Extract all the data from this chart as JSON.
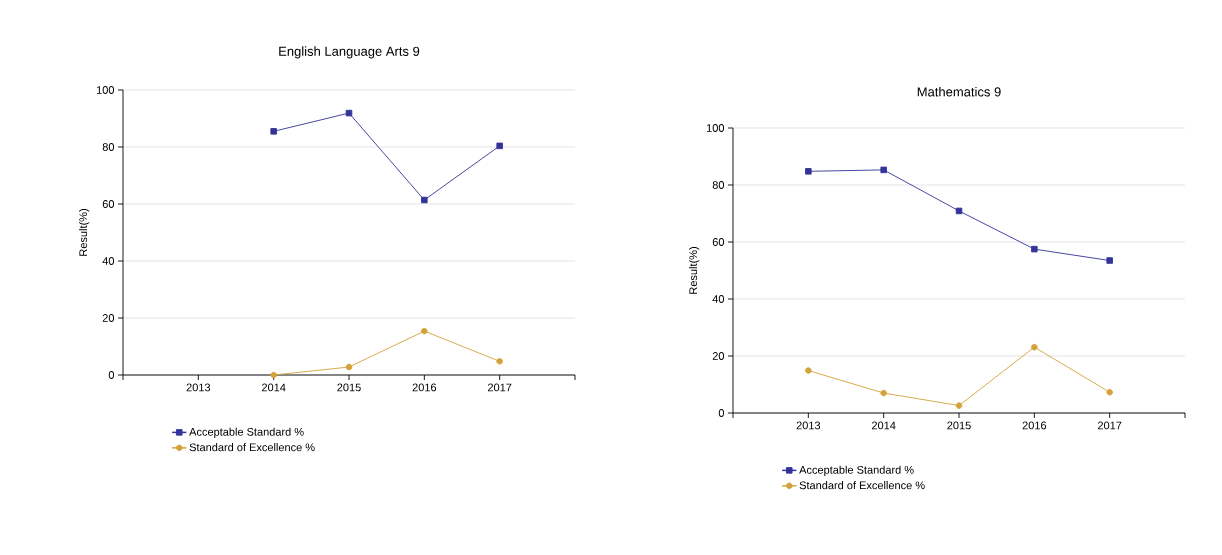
{
  "chart_data": [
    {
      "type": "line",
      "title": "English Language Arts 9",
      "ylabel": "Result(%)",
      "categories": [
        "2013",
        "2014",
        "2015",
        "2016",
        "2017"
      ],
      "series": [
        {
          "name": "Acceptable Standard %",
          "color": "#333399",
          "marker": "square",
          "values": [
            null,
            85.5,
            91.9,
            61.4,
            80.4
          ]
        },
        {
          "name": "Standard of Excellence %",
          "color": "#d4a23a",
          "marker": "circle",
          "values": [
            null,
            0,
            2.8,
            15.4,
            4.8
          ]
        }
      ],
      "ylim": [
        0,
        100
      ],
      "yticks": [
        0,
        20,
        40,
        60,
        80,
        100
      ],
      "grid": "y",
      "legend": "bottom"
    },
    {
      "type": "line",
      "title": "Mathematics 9",
      "ylabel": "Result(%)",
      "categories": [
        "2013",
        "2014",
        "2015",
        "2016",
        "2017"
      ],
      "series": [
        {
          "name": "Acceptable Standard %",
          "color": "#333399",
          "marker": "square",
          "values": [
            84.8,
            85.3,
            70.9,
            57.5,
            53.5
          ]
        },
        {
          "name": "Standard of Excellence %",
          "color": "#d4a23a",
          "marker": "circle",
          "values": [
            14.9,
            7.0,
            2.6,
            23.1,
            7.3
          ]
        }
      ],
      "ylim": [
        0,
        100
      ],
      "yticks": [
        0,
        20,
        40,
        60,
        80,
        100
      ],
      "grid": "y",
      "legend": "bottom"
    }
  ]
}
